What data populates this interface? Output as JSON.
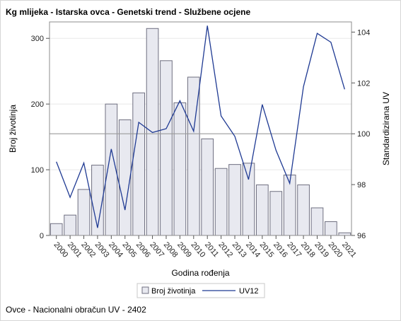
{
  "title": "Kg mlijeka - Istarska ovca - Genetski trend - Službene ocjene",
  "footnote": "Ovce - Nacionalni obračun UV - 2402",
  "chart_data": {
    "type": "bar",
    "x": [
      "2000",
      "2001",
      "2002",
      "2003",
      "2004",
      "2005",
      "2006",
      "2007",
      "2008",
      "2009",
      "2010",
      "2011",
      "2012",
      "2013",
      "2014",
      "2015",
      "2016",
      "2017",
      "2018",
      "2019",
      "2020",
      "2021"
    ],
    "xlabel": "Godina rođenja",
    "ylabel": "Broj životinja",
    "y2label": "Standardizirana UV",
    "ylim": [
      0,
      325
    ],
    "y2lim": [
      96,
      104.4
    ],
    "yticks": [
      0,
      100,
      200,
      300
    ],
    "y2ticks": [
      96,
      98,
      100,
      102,
      104
    ],
    "reference_y2": 100,
    "grid": true,
    "legend_position": "bottom-center",
    "series": [
      {
        "name": "Broj životinja",
        "type": "bar",
        "axis": "left",
        "color": "#e8e9f0",
        "stroke": "#6f6f80",
        "values": [
          18,
          31,
          70,
          107,
          200,
          176,
          217,
          315,
          266,
          202,
          241,
          147,
          102,
          108,
          110,
          77,
          67,
          92,
          77,
          42,
          21,
          4
        ]
      },
      {
        "name": "UV12",
        "type": "line",
        "axis": "right",
        "color": "#1f3a93",
        "values": [
          98.9,
          97.5,
          98.85,
          96.3,
          99.4,
          97.0,
          100.45,
          100.05,
          100.2,
          101.3,
          100.1,
          104.25,
          100.7,
          99.9,
          98.2,
          101.15,
          99.35,
          98.05,
          101.85,
          103.95,
          103.6,
          101.75
        ]
      }
    ]
  }
}
